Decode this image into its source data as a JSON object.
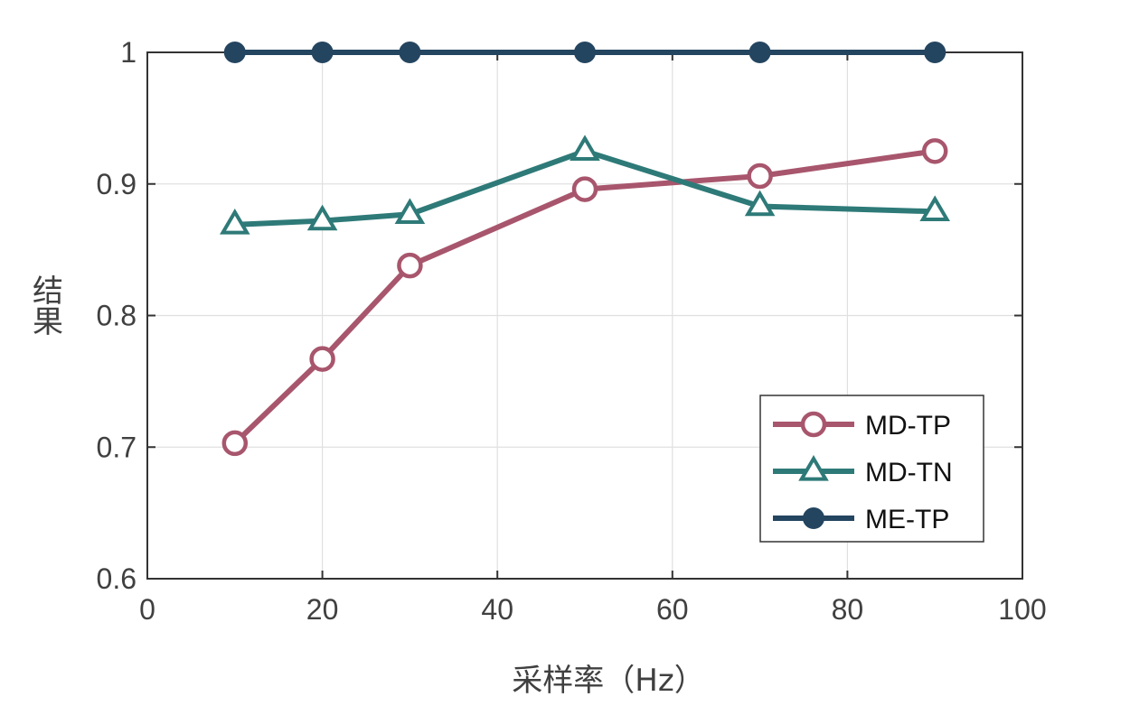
{
  "chart_data": {
    "type": "line",
    "title": "",
    "xlabel": "采样率（Hz）",
    "ylabel": "结果",
    "xlim": [
      0,
      100
    ],
    "ylim": [
      0.6,
      1.0
    ],
    "xticks": [
      0,
      20,
      40,
      60,
      80,
      100
    ],
    "xtick_labels": [
      "0",
      "20",
      "40",
      "60",
      "80",
      "100"
    ],
    "yticks": [
      0.6,
      0.7,
      0.8,
      0.9,
      1.0
    ],
    "ytick_labels": [
      "0.6",
      "0.7",
      "0.8",
      "0.9",
      "1"
    ],
    "grid": true,
    "legend_position": "bottom-right",
    "x": [
      10,
      20,
      30,
      50,
      70,
      90
    ],
    "series": [
      {
        "name": "MD-TP",
        "values": [
          0.703,
          0.767,
          0.838,
          0.896,
          0.906,
          0.925
        ],
        "color": "#a8566d",
        "marker": "circle-open"
      },
      {
        "name": "MD-TN",
        "values": [
          0.869,
          0.872,
          0.877,
          0.925,
          0.883,
          0.879
        ],
        "color": "#2e7a78",
        "marker": "triangle-open"
      },
      {
        "name": "ME-TP",
        "values": [
          1.0,
          1.0,
          1.0,
          1.0,
          1.0,
          1.0
        ],
        "color": "#244560",
        "marker": "circle-filled"
      }
    ]
  }
}
